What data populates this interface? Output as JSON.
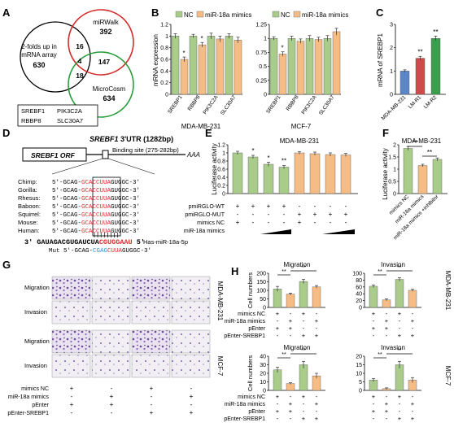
{
  "panels": {
    "A": {
      "letter": "A",
      "circles": [
        {
          "name": "2-folds up in\nmRNA array",
          "count": "630",
          "color": "#000000"
        },
        {
          "name": "miRWalk",
          "count": "392",
          "color": "#d62a2a"
        },
        {
          "name": "MicroCosm",
          "count": "634",
          "color": "#2a9d3a"
        }
      ],
      "overlaps": [
        "16",
        "4",
        "147",
        "18"
      ],
      "genes": [
        "SREBF1",
        "PIK3C2A",
        "RBBP8",
        "SLC30A7"
      ]
    },
    "B": {
      "letter": "B",
      "legend": [
        "NC",
        "miR-18a mimics"
      ],
      "ylabel": "mRNA expression",
      "charts": [
        {
          "cellline": "MDA-MB-231",
          "genes": [
            "SREBP1",
            "RBBP8",
            "PIK3C2A",
            "SLC30A7"
          ]
        },
        {
          "cellline": "MCF-7",
          "genes": [
            "SREBP1",
            "RBBP8",
            "PIK3C2A",
            "SLC30A7"
          ]
        }
      ]
    },
    "C": {
      "letter": "C",
      "ylabel": "mRNA of SREBP1",
      "labels": [
        "MDA-MB-231",
        "LM-R1",
        "LM-R2"
      ],
      "stars": [
        "**",
        "**"
      ]
    },
    "D": {
      "letter": "D",
      "title_gene": "SREBF1",
      "title_rest": " 3'UTR (1282bp)",
      "orf": "SREBF1 ORF",
      "binding": "Binding site (275-282bp)",
      "polyA": "AAA",
      "species": [
        {
          "name": "Chimp:",
          "pre": "5'-GCAG-",
          "mid": "GCACCUUA",
          "post": "GUGGC-3'"
        },
        {
          "name": "Gorilla:",
          "pre": "5'-GCAG-",
          "mid": "GCACCUUA",
          "post": "GUGGC-3'"
        },
        {
          "name": "Rhesus:",
          "pre": "5'-GCAG-",
          "mid": "GCACCUUA",
          "post": "GUGGC-3'"
        },
        {
          "name": "Baboon:",
          "pre": "5'-GCAG-",
          "mid": "GCACCUUA",
          "post": "GUGGC-3'"
        },
        {
          "name": "Squirrel:",
          "pre": "5'-GCAG-",
          "mid": "GCACCUUA",
          "post": "GUGGC-3'"
        },
        {
          "name": "Mouse:",
          "pre": "5'-GCAG-",
          "mid": "GCACCUUA",
          "post": "GUGGC-3'"
        },
        {
          "name": "Human:",
          "pre": "5'-GCAG-",
          "mid": "GCACCUUA",
          "post": "GUGGC-3'"
        }
      ],
      "mir_pre": "3' GAUAGACGUGAUCUA",
      "mir_seed": "CGUGGAAU",
      "mir_post": " 5'",
      "mir_name": "Has-miR-18a-5p",
      "mut_pre": "Mut 5'-GCAG-",
      "mut_a": "CGAG",
      "mut_b": "CUUA",
      "mut_post": "GUGGC-3'"
    },
    "E": {
      "letter": "E",
      "title": "MDA-MB-231",
      "ylabel": "Luciferase activity",
      "rows": [
        {
          "label": "pmiRGLO-WT",
          "marks": [
            "+",
            "+",
            "+",
            "+",
            "-",
            "-",
            "-",
            "-"
          ]
        },
        {
          "label": "pmiRGLO-MUT",
          "marks": [
            "-",
            "-",
            "-",
            "-",
            "+",
            "+",
            "+",
            "+"
          ]
        },
        {
          "label": "mimics NC",
          "marks": [
            "+",
            "-",
            "-",
            "-",
            "+",
            "-",
            "-",
            "-"
          ]
        },
        {
          "label": "miR-18a mimics",
          "marks": []
        }
      ]
    },
    "F": {
      "letter": "F",
      "title": "MDA-MB-231",
      "ylabel": "Luciferase activity",
      "labels": [
        "mimics NC",
        "miR-18a mimics",
        "miR-18a mimics\n+inhibitor"
      ],
      "stars": [
        "**",
        "**"
      ]
    },
    "G": {
      "letter": "G",
      "rows": [
        "Migration",
        "Invasion",
        "Migration",
        "Invasion"
      ],
      "groups": [
        "MDA-MB-231",
        "MCF-7"
      ],
      "treat": [
        {
          "label": "mimics NC",
          "marks": [
            "+",
            "-",
            "+",
            "-"
          ]
        },
        {
          "label": "miR-18a mimics",
          "marks": [
            "-",
            "+",
            "-",
            "+"
          ]
        },
        {
          "label": "pEnter",
          "marks": [
            "+",
            "+",
            "-",
            "-"
          ]
        },
        {
          "label": "pEnter-SREBP1",
          "marks": [
            "-",
            "-",
            "+",
            "+"
          ]
        }
      ]
    },
    "H": {
      "letter": "H",
      "ylabel": "Cell numbers",
      "groups": [
        "MDA-MB-231",
        "MCF-7"
      ],
      "titles": [
        "Migration",
        "Invasion"
      ],
      "treat": [
        {
          "label": "mimics NC",
          "marks": [
            "+",
            "-",
            "+",
            "-"
          ]
        },
        {
          "label": "miR-18a mimics",
          "marks": [
            "-",
            "+",
            "-",
            "+"
          ]
        },
        {
          "label": "pEnter",
          "marks": [
            "+",
            "+",
            "-",
            "-"
          ]
        },
        {
          "label": "pEnter-SREBP1",
          "marks": [
            "-",
            "-",
            "+",
            "+"
          ]
        }
      ]
    }
  },
  "colors": {
    "nc": "#a9cc8a",
    "mimic": "#f5bc86",
    "blue": "#5b87c9",
    "red": "#cf4a4a",
    "green": "#3c9e4c",
    "seed": "#e02a2a",
    "mut": "#2a8fd0"
  },
  "chart_data": [
    {
      "type": "bar",
      "panel": "B",
      "xlabel": "MDA-MB-231",
      "ylabel": "mRNA expression",
      "ylim": [
        0,
        1.2
      ],
      "categories": [
        "SREBP1",
        "RBBP8",
        "PIK3C2A",
        "SLC30A7"
      ],
      "series": [
        {
          "name": "NC",
          "values": [
            1.0,
            1.0,
            1.0,
            1.0
          ]
        },
        {
          "name": "miR-18a mimics",
          "values": [
            0.6,
            0.85,
            0.95,
            0.93
          ]
        }
      ],
      "errors": [
        [
          0.04,
          0.03,
          0.05,
          0.04
        ],
        [
          0.04,
          0.04,
          0.05,
          0.05
        ]
      ],
      "stars": [
        "*",
        "*",
        "",
        ""
      ],
      "ticks": [
        "0",
        "0.2",
        "0.4",
        "0.6",
        "0.8",
        "1",
        "1.2"
      ]
    },
    {
      "type": "bar",
      "panel": "B",
      "xlabel": "MCF-7",
      "ylim": [
        0,
        1.25
      ],
      "categories": [
        "SREBP1",
        "RBBP8",
        "PIK3C2A",
        "SLC30A7"
      ],
      "series": [
        {
          "name": "NC",
          "values": [
            1.0,
            1.0,
            1.0,
            1.0
          ]
        },
        {
          "name": "miR-18a mimics",
          "values": [
            0.72,
            0.95,
            0.98,
            1.12
          ]
        }
      ],
      "errors": [
        [
          0.03,
          0.04,
          0.05,
          0.05
        ],
        [
          0.04,
          0.04,
          0.04,
          0.06
        ]
      ],
      "stars": [
        "*",
        "",
        "",
        ""
      ],
      "ticks": [
        "0",
        "0.25",
        "0.5",
        "0.75",
        "1",
        "1.25"
      ]
    },
    {
      "type": "bar",
      "panel": "C",
      "ylabel": "mRNA of SREBP1",
      "ylim": [
        0,
        3
      ],
      "categories": [
        "MDA-MB-231",
        "LM-R1",
        "LM-R2"
      ],
      "values": [
        1.0,
        1.55,
        2.4
      ],
      "errors": [
        0.05,
        0.08,
        0.1
      ],
      "ticks": [
        "0",
        "1",
        "2",
        "3"
      ]
    },
    {
      "type": "bar",
      "panel": "E",
      "title": "MDA-MB-231",
      "ylabel": "Luciferase activity",
      "ylim": [
        0,
        1.2
      ],
      "values": [
        1.0,
        0.9,
        0.72,
        0.65,
        1.0,
        0.98,
        0.96,
        0.95
      ],
      "errors": [
        0.04,
        0.04,
        0.05,
        0.04,
        0.03,
        0.04,
        0.04,
        0.04
      ],
      "stars": [
        "",
        "*",
        "*",
        "**",
        "",
        "",
        "",
        ""
      ],
      "ticks": [
        "0",
        "0.2",
        "0.4",
        "0.6",
        "0.8",
        "1",
        "1.2"
      ]
    },
    {
      "type": "bar",
      "panel": "F",
      "title": "MDA-MB-231",
      "ylabel": "Luciferase activity",
      "ylim": [
        0,
        2
      ],
      "categories": [
        "mimics NC",
        "miR-18a mimics",
        "miR-18a mimics +inhibitor"
      ],
      "values": [
        1.85,
        1.15,
        1.4
      ],
      "errors": [
        0.08,
        0.05,
        0.06
      ],
      "ticks": [
        "0",
        "0.5",
        "1",
        "1.5",
        "2"
      ]
    },
    {
      "type": "bar",
      "panel": "H",
      "title": "Migration",
      "group": "MDA-MB-231",
      "ylabel": "Cell numbers",
      "ylim": [
        0,
        200
      ],
      "values": [
        108,
        78,
        152,
        120
      ],
      "errors": [
        15,
        6,
        12,
        8
      ],
      "ticks": [
        "0",
        "50",
        "100",
        "150",
        "200"
      ]
    },
    {
      "type": "bar",
      "panel": "H",
      "title": "Invasion",
      "group": "MDA-MB-231",
      "ylim": [
        0,
        100
      ],
      "values": [
        62,
        22,
        82,
        50
      ],
      "errors": [
        4,
        3,
        5,
        3
      ],
      "ticks": [
        "0",
        "20",
        "40",
        "60",
        "80",
        "100"
      ]
    },
    {
      "type": "bar",
      "panel": "H",
      "title": "Migration",
      "group": "MCF-7",
      "ylabel": "Cell numbers",
      "ylim": [
        0,
        40
      ],
      "values": [
        24,
        8,
        30,
        17
      ],
      "errors": [
        3,
        1,
        4,
        3
      ],
      "ticks": [
        "0",
        "10",
        "20",
        "30",
        "40"
      ]
    },
    {
      "type": "bar",
      "panel": "H",
      "title": "Invasion",
      "group": "MCF-7",
      "ylim": [
        0,
        20
      ],
      "values": [
        6,
        1,
        15,
        6
      ],
      "errors": [
        1,
        0.5,
        2,
        1.5
      ],
      "ticks": [
        "0",
        "5",
        "10",
        "15",
        "20"
      ]
    }
  ]
}
